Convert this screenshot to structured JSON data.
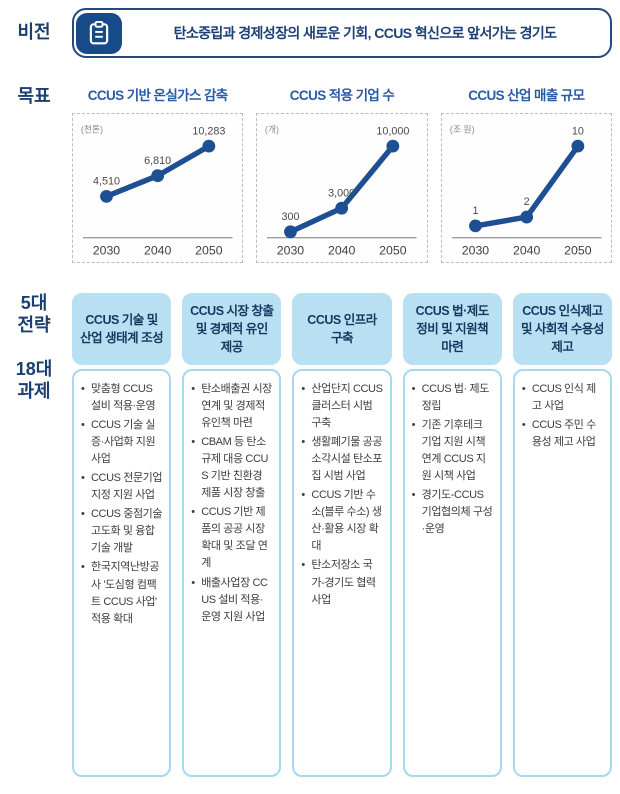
{
  "vision": {
    "label": "비전",
    "icon": "clipboard-icon",
    "text": "탄소중립과 경제성장의 새로운 기회, CCUS 혁신으로 앞서가는 경기도"
  },
  "goals": {
    "label": "목표"
  },
  "chart_data": [
    {
      "type": "line",
      "title": "CCUS 기반 온실가스 감축",
      "unit": "(천톤)",
      "x_labels": [
        "2030",
        "2040",
        "2050"
      ],
      "values": [
        4510,
        6810,
        10283
      ],
      "value_labels": [
        "4,510",
        "6,810",
        "10,283"
      ],
      "ylim": [
        0,
        10283
      ],
      "grid": false,
      "legend": "none"
    },
    {
      "type": "line",
      "title": "CCUS 적용 기업 수",
      "unit": "(개)",
      "x_labels": [
        "2030",
        "2040",
        "2050"
      ],
      "values": [
        300,
        3000,
        10000
      ],
      "value_labels": [
        "300",
        "3,000",
        "10,000"
      ],
      "ylim": [
        0,
        10000
      ],
      "grid": false,
      "legend": "none"
    },
    {
      "type": "line",
      "title": "CCUS 산업 매출 규모",
      "unit": "(조 원)",
      "x_labels": [
        "2030",
        "2040",
        "2050"
      ],
      "values": [
        1,
        2,
        10
      ],
      "value_labels": [
        "1",
        "2",
        "10"
      ],
      "ylim": [
        0,
        10
      ],
      "grid": false,
      "legend": "none"
    }
  ],
  "strategies": {
    "label_top": "5대 전략",
    "label_bottom": "18대 과제",
    "columns": [
      {
        "header": "CCUS 기술 및 산업 생태계 조성",
        "items": [
          "맞춤형 CCUS 설비 적용·운영",
          "CCUS 기술 실증·사업화 지원 사업",
          "CCUS 전문기업 지정 지원 사업",
          "CCUS 중점기술 고도화 및 융합기술 개발",
          "한국지역난방공사 '도심형 컴팩트 CCUS 사업' 적용 확대"
        ]
      },
      {
        "header": "CCUS 시장 창출 및 경제적 유인 제공",
        "items": [
          "탄소배출권 시장 연계 및 경제적 유인책 마련",
          "CBAM 등 탄소규제 대응 CCUS 기반 친환경 제품 시장 창출",
          "CCUS 기반 제품의 공공 시장 확대 및 조달 연계",
          "배출사업장 CCUS 설비 적용·운영 지원 사업"
        ]
      },
      {
        "header": "CCUS 인프라 구축",
        "items": [
          "산업단지 CCUS 클러스터 시범 구축",
          "생활폐기물 공공소각시설 탄소포집 시범 사업",
          "CCUS 기반 수소(블루 수소) 생산·활용 시장 확대",
          "탄소저장소 국가-경기도 협력 사업"
        ]
      },
      {
        "header": "CCUS 법·제도 정비 및 지원책 마련",
        "items": [
          "CCUS 법· 제도 정립",
          "기존 기후테크 기업 지원 시책 연계 CCUS 지원 시책 사업",
          "경기도-CCUS 기업협의체 구성·운영"
        ]
      },
      {
        "header": "CCUS 인식제고 및 사회적 수용성 제고",
        "items": [
          "CCUS 인식 제고 사업",
          "CCUS 주민 수용성 제고 사업"
        ]
      }
    ]
  },
  "colors": {
    "navy": "#1b3f70",
    "line": "#1d4f93",
    "header_bg": "#b9e0f2",
    "column_border": "#a6d8f0",
    "chart_title": "#2a5ba8"
  }
}
